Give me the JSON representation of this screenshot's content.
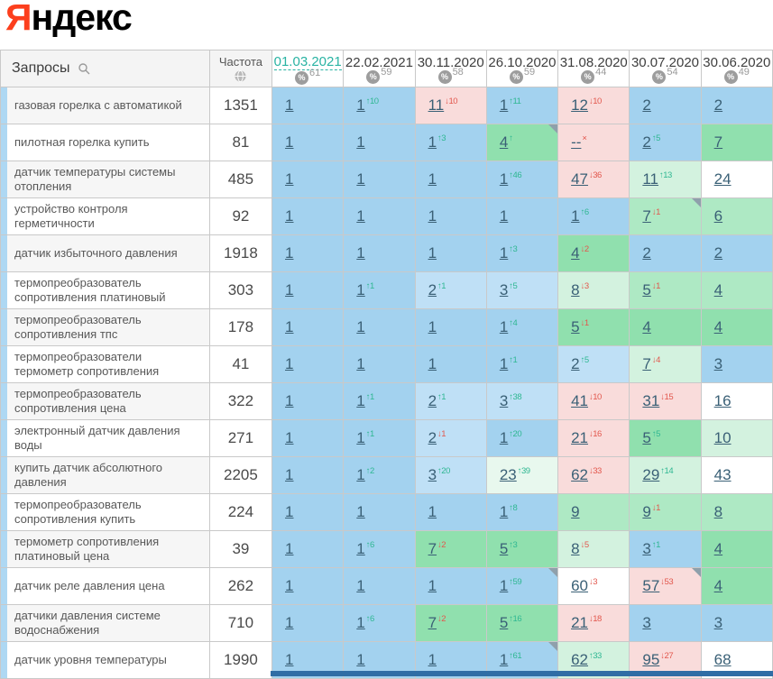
{
  "logo": {
    "prefix": "Я",
    "rest": "ндекс"
  },
  "colors": {
    "b1": "#a3d2ef",
    "b2": "#bfe0f6",
    "g1": "#90e0ae",
    "g2": "#aee9c4",
    "g3": "#d3f2df",
    "g4": "#e8f8ee",
    "pk": "#f9dcdb",
    "wh": "#ffffff",
    "up": "#2fb792",
    "down": "#e2574d",
    "link": "#3a6076",
    "active_date": "#29b3a3",
    "yandex_red": "#fc3f1d"
  },
  "table": {
    "queries_header": "Запросы",
    "frequency_header": "Частота",
    "icons": {
      "search": "search-icon",
      "globe": "globe-icon",
      "percent": "percent-icon"
    },
    "columns": [
      {
        "date": "01.03.2021",
        "share": "61",
        "active": true
      },
      {
        "date": "22.02.2021",
        "share": "59",
        "active": false
      },
      {
        "date": "30.11.2020",
        "share": "58",
        "active": false
      },
      {
        "date": "26.10.2020",
        "share": "59",
        "active": false
      },
      {
        "date": "31.08.2020",
        "share": "44",
        "active": false
      },
      {
        "date": "30.07.2020",
        "share": "54",
        "active": false
      },
      {
        "date": "30.06.2020",
        "share": "49",
        "active": false
      }
    ],
    "rows": [
      {
        "query": "газовая горелка с автоматикой",
        "frequency": "1351",
        "cells": [
          {
            "v": "1",
            "bg": "b1"
          },
          {
            "v": "1",
            "d": "↑10",
            "bg": "b1"
          },
          {
            "v": "11",
            "d": "↓10",
            "bg": "pk"
          },
          {
            "v": "1",
            "d": "↑11",
            "bg": "b1"
          },
          {
            "v": "12",
            "d": "↓10",
            "bg": "pk"
          },
          {
            "v": "2",
            "bg": "b1"
          },
          {
            "v": "2",
            "bg": "b1"
          }
        ]
      },
      {
        "query": "пилотная горелка купить",
        "frequency": "81",
        "cells": [
          {
            "v": "1",
            "bg": "b1"
          },
          {
            "v": "1",
            "bg": "b1"
          },
          {
            "v": "1",
            "d": "↑3",
            "bg": "b1"
          },
          {
            "v": "4",
            "d": "↑",
            "bg": "g1",
            "note": true
          },
          {
            "v": "--",
            "d": "×",
            "bg": "pk"
          },
          {
            "v": "2",
            "d": "↑5",
            "bg": "b1"
          },
          {
            "v": "7",
            "bg": "g1"
          }
        ]
      },
      {
        "query": "датчик температуры системы отопления",
        "frequency": "485",
        "cells": [
          {
            "v": "1",
            "bg": "b1"
          },
          {
            "v": "1",
            "bg": "b1"
          },
          {
            "v": "1",
            "bg": "b1"
          },
          {
            "v": "1",
            "d": "↑46",
            "bg": "b1"
          },
          {
            "v": "47",
            "d": "↓36",
            "bg": "pk"
          },
          {
            "v": "11",
            "d": "↑13",
            "bg": "g3"
          },
          {
            "v": "24",
            "bg": "wh"
          }
        ]
      },
      {
        "query": "устройство контроля герметичности",
        "frequency": "92",
        "cells": [
          {
            "v": "1",
            "bg": "b1"
          },
          {
            "v": "1",
            "bg": "b1"
          },
          {
            "v": "1",
            "bg": "b1"
          },
          {
            "v": "1",
            "bg": "b1"
          },
          {
            "v": "1",
            "d": "↑6",
            "bg": "b1"
          },
          {
            "v": "7",
            "d": "↓1",
            "bg": "g2",
            "note": true
          },
          {
            "v": "6",
            "bg": "g2"
          }
        ]
      },
      {
        "query": "датчик избыточного давления",
        "frequency": "1918",
        "cells": [
          {
            "v": "1",
            "bg": "b1"
          },
          {
            "v": "1",
            "bg": "b1"
          },
          {
            "v": "1",
            "bg": "b1"
          },
          {
            "v": "1",
            "d": "↑3",
            "bg": "b1"
          },
          {
            "v": "4",
            "d": "↓2",
            "bg": "g1"
          },
          {
            "v": "2",
            "bg": "b1"
          },
          {
            "v": "2",
            "bg": "b1"
          }
        ]
      },
      {
        "query": "термопреобразователь сопротивления платиновый",
        "frequency": "303",
        "cells": [
          {
            "v": "1",
            "bg": "b1"
          },
          {
            "v": "1",
            "d": "↑1",
            "bg": "b1"
          },
          {
            "v": "2",
            "d": "↑1",
            "bg": "b2"
          },
          {
            "v": "3",
            "d": "↑5",
            "bg": "b2"
          },
          {
            "v": "8",
            "d": "↓3",
            "bg": "g3"
          },
          {
            "v": "5",
            "d": "↓1",
            "bg": "g2"
          },
          {
            "v": "4",
            "bg": "g2"
          }
        ]
      },
      {
        "query": "термопреобразователь сопротивления тпс",
        "frequency": "178",
        "cells": [
          {
            "v": "1",
            "bg": "b1"
          },
          {
            "v": "1",
            "bg": "b1"
          },
          {
            "v": "1",
            "bg": "b1"
          },
          {
            "v": "1",
            "d": "↑4",
            "bg": "b1"
          },
          {
            "v": "5",
            "d": "↓1",
            "bg": "g1"
          },
          {
            "v": "4",
            "bg": "g1"
          },
          {
            "v": "4",
            "bg": "g1"
          }
        ]
      },
      {
        "query": "термопреобразователи термометр сопротивления",
        "frequency": "41",
        "cells": [
          {
            "v": "1",
            "bg": "b1"
          },
          {
            "v": "1",
            "bg": "b1"
          },
          {
            "v": "1",
            "bg": "b1"
          },
          {
            "v": "1",
            "d": "↑1",
            "bg": "b1"
          },
          {
            "v": "2",
            "d": "↑5",
            "bg": "b2"
          },
          {
            "v": "7",
            "d": "↓4",
            "bg": "g3"
          },
          {
            "v": "3",
            "bg": "b1"
          }
        ]
      },
      {
        "query": "термопреобразователь сопротивления цена",
        "frequency": "322",
        "cells": [
          {
            "v": "1",
            "bg": "b1"
          },
          {
            "v": "1",
            "d": "↑1",
            "bg": "b1"
          },
          {
            "v": "2",
            "d": "↑1",
            "bg": "b2"
          },
          {
            "v": "3",
            "d": "↑38",
            "bg": "b2"
          },
          {
            "v": "41",
            "d": "↓10",
            "bg": "pk"
          },
          {
            "v": "31",
            "d": "↓15",
            "bg": "pk"
          },
          {
            "v": "16",
            "bg": "wh"
          }
        ]
      },
      {
        "query": "электронный датчик давления воды",
        "frequency": "271",
        "cells": [
          {
            "v": "1",
            "bg": "b1"
          },
          {
            "v": "1",
            "d": "↑1",
            "bg": "b1"
          },
          {
            "v": "2",
            "d": "↓1",
            "bg": "b2"
          },
          {
            "v": "1",
            "d": "↑20",
            "bg": "b1"
          },
          {
            "v": "21",
            "d": "↓16",
            "bg": "pk"
          },
          {
            "v": "5",
            "d": "↑5",
            "bg": "g1"
          },
          {
            "v": "10",
            "bg": "g3"
          }
        ]
      },
      {
        "query": "купить датчик абсолютного давления",
        "frequency": "2205",
        "cells": [
          {
            "v": "1",
            "bg": "b1"
          },
          {
            "v": "1",
            "d": "↑2",
            "bg": "b1"
          },
          {
            "v": "3",
            "d": "↑20",
            "bg": "b2"
          },
          {
            "v": "23",
            "d": "↑39",
            "bg": "g4"
          },
          {
            "v": "62",
            "d": "↓33",
            "bg": "pk"
          },
          {
            "v": "29",
            "d": "↑14",
            "bg": "g3"
          },
          {
            "v": "43",
            "bg": "wh"
          }
        ]
      },
      {
        "query": "термопреобразователь сопротивления купить",
        "frequency": "224",
        "cells": [
          {
            "v": "1",
            "bg": "b1"
          },
          {
            "v": "1",
            "bg": "b1"
          },
          {
            "v": "1",
            "bg": "b1"
          },
          {
            "v": "1",
            "d": "↑8",
            "bg": "b1"
          },
          {
            "v": "9",
            "bg": "g2"
          },
          {
            "v": "9",
            "d": "↓1",
            "bg": "g2"
          },
          {
            "v": "8",
            "bg": "g2"
          }
        ]
      },
      {
        "query": "термометр сопротивления платиновый цена",
        "frequency": "39",
        "cells": [
          {
            "v": "1",
            "bg": "b1"
          },
          {
            "v": "1",
            "d": "↑6",
            "bg": "b1"
          },
          {
            "v": "7",
            "d": "↓2",
            "bg": "g1"
          },
          {
            "v": "5",
            "d": "↑3",
            "bg": "g1"
          },
          {
            "v": "8",
            "d": "↓5",
            "bg": "g3"
          },
          {
            "v": "3",
            "d": "↑1",
            "bg": "b1"
          },
          {
            "v": "4",
            "bg": "g1"
          }
        ]
      },
      {
        "query": "датчик реле давления цена",
        "frequency": "262",
        "cells": [
          {
            "v": "1",
            "bg": "b1"
          },
          {
            "v": "1",
            "bg": "b1"
          },
          {
            "v": "1",
            "bg": "b1"
          },
          {
            "v": "1",
            "d": "↑59",
            "bg": "b1",
            "note": true
          },
          {
            "v": "60",
            "d": "↓3",
            "bg": "wh"
          },
          {
            "v": "57",
            "d": "↓53",
            "bg": "pk",
            "note": true
          },
          {
            "v": "4",
            "bg": "g1"
          }
        ]
      },
      {
        "query": "датчики давления системе водоснабжения",
        "frequency": "710",
        "cells": [
          {
            "v": "1",
            "bg": "b1"
          },
          {
            "v": "1",
            "d": "↑6",
            "bg": "b1"
          },
          {
            "v": "7",
            "d": "↓2",
            "bg": "g1"
          },
          {
            "v": "5",
            "d": "↑16",
            "bg": "g1"
          },
          {
            "v": "21",
            "d": "↓18",
            "bg": "pk"
          },
          {
            "v": "3",
            "bg": "b1"
          },
          {
            "v": "3",
            "bg": "b1"
          }
        ]
      },
      {
        "query": "датчик уровня температуры",
        "frequency": "1990",
        "cells": [
          {
            "v": "1",
            "bg": "b1"
          },
          {
            "v": "1",
            "bg": "b1"
          },
          {
            "v": "1",
            "bg": "b1"
          },
          {
            "v": "1",
            "d": "↑61",
            "bg": "b1",
            "note": true
          },
          {
            "v": "62",
            "d": "↑33",
            "bg": "g3"
          },
          {
            "v": "95",
            "d": "↓27",
            "bg": "pk"
          },
          {
            "v": "68",
            "bg": "wh"
          }
        ]
      }
    ]
  }
}
